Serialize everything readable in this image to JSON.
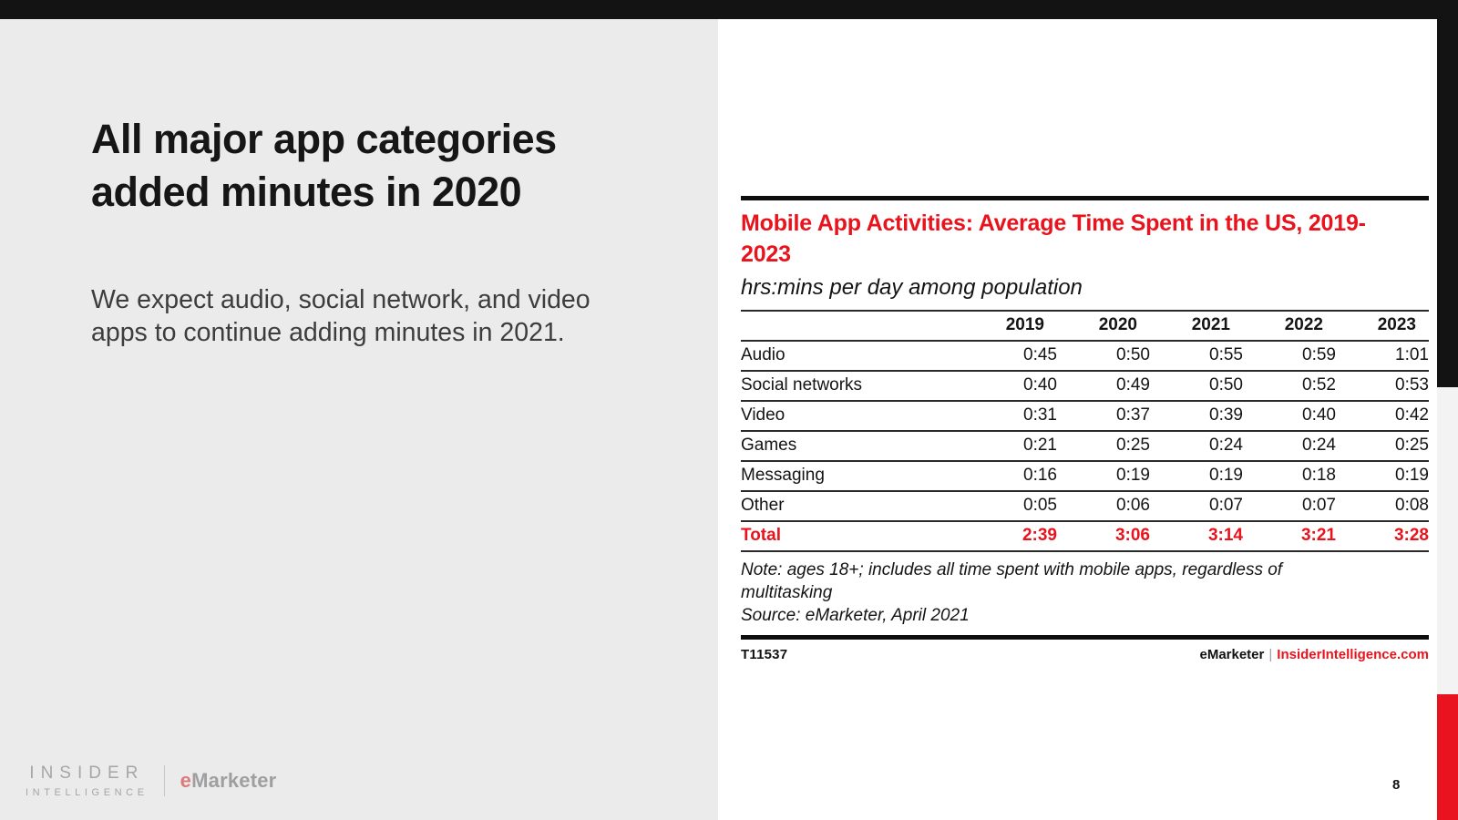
{
  "colors": {
    "accent_red": "#e8131f",
    "topbar_black": "#131313",
    "left_panel_gray": "#ebebeb",
    "right_strip_gray": "#f3f3f3"
  },
  "slide": {
    "title": "All major app categories added minutes in 2020",
    "body": "We expect audio, social network, and video apps to continue adding minutes in 2021.",
    "page_number": "8"
  },
  "logo": {
    "insider_line1": "INSIDER",
    "insider_line2": "INTELLIGENCE",
    "emarketer_e": "e",
    "emarketer_rest": "Marketer"
  },
  "chart_data": {
    "type": "table",
    "title": "Mobile App Activities: Average Time Spent in the US, 2019-2023",
    "subtitle": "hrs:mins per day among population",
    "columns": [
      "2019",
      "2020",
      "2021",
      "2022",
      "2023"
    ],
    "rows": [
      {
        "label": "Audio",
        "values": [
          "0:45",
          "0:50",
          "0:55",
          "0:59",
          "1:01"
        ]
      },
      {
        "label": "Social networks",
        "values": [
          "0:40",
          "0:49",
          "0:50",
          "0:52",
          "0:53"
        ]
      },
      {
        "label": "Video",
        "values": [
          "0:31",
          "0:37",
          "0:39",
          "0:40",
          "0:42"
        ]
      },
      {
        "label": "Games",
        "values": [
          "0:21",
          "0:25",
          "0:24",
          "0:24",
          "0:25"
        ]
      },
      {
        "label": "Messaging",
        "values": [
          "0:16",
          "0:19",
          "0:19",
          "0:18",
          "0:19"
        ]
      },
      {
        "label": "Other",
        "values": [
          "0:05",
          "0:06",
          "0:07",
          "0:07",
          "0:08"
        ]
      }
    ],
    "total_row": {
      "label": "Total",
      "values": [
        "2:39",
        "3:06",
        "3:14",
        "3:21",
        "3:28"
      ]
    },
    "note": "Note: ages 18+; includes all time spent with mobile apps, regardless of multitasking",
    "source": "Source: eMarketer, April 2021",
    "chart_id": "T11537",
    "footer_brand": "eMarketer",
    "footer_separator": "|",
    "footer_site": "InsiderIntelligence.com"
  }
}
